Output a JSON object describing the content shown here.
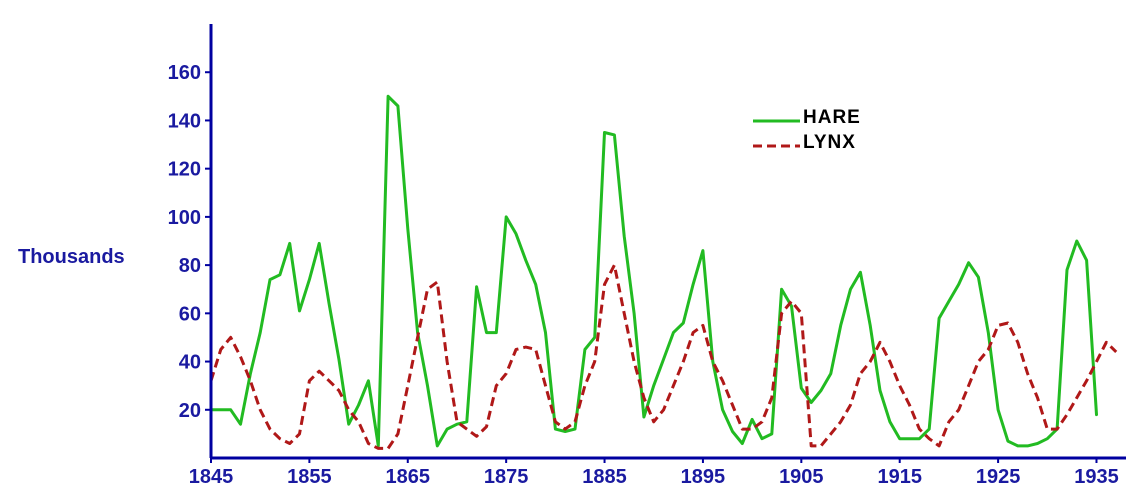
{
  "chart_data": {
    "type": "line",
    "title": "",
    "xlabel": "",
    "ylabel": "Thousands",
    "xlim": [
      1845,
      1938
    ],
    "ylim": [
      0,
      180
    ],
    "x_ticks": [
      1845,
      1855,
      1865,
      1875,
      1885,
      1895,
      1905,
      1915,
      1925,
      1935
    ],
    "y_ticks": [
      20,
      40,
      60,
      80,
      100,
      120,
      140,
      160
    ],
    "grid": false,
    "legend_position": "top-right",
    "colors": {
      "axis": "#0000a0",
      "text": "#1a1aa0",
      "hare": "#22bb22",
      "lynx": "#b01818"
    },
    "series": [
      {
        "name": "HARE",
        "style": "solid",
        "x": [
          1845,
          1847,
          1848,
          1849,
          1850,
          1851,
          1852,
          1853,
          1854,
          1855,
          1856,
          1857,
          1858,
          1859,
          1860,
          1861,
          1862,
          1863,
          1864,
          1865,
          1866,
          1867,
          1868,
          1869,
          1870,
          1871,
          1872,
          1873,
          1874,
          1875,
          1876,
          1877,
          1878,
          1879,
          1880,
          1881,
          1882,
          1883,
          1884,
          1885,
          1886,
          1887,
          1888,
          1889,
          1890,
          1891,
          1892,
          1893,
          1894,
          1895,
          1896,
          1897,
          1898,
          1899,
          1900,
          1901,
          1902,
          1903,
          1904,
          1905,
          1906,
          1907,
          1908,
          1909,
          1910,
          1911,
          1912,
          1913,
          1914,
          1915,
          1916,
          1917,
          1918,
          1919,
          1920,
          1921,
          1922,
          1923,
          1924,
          1925,
          1926,
          1927,
          1928,
          1929,
          1930,
          1931,
          1932,
          1933,
          1934,
          1935
        ],
        "values": [
          20,
          20,
          14,
          35,
          52,
          74,
          76,
          89,
          61,
          74,
          89,
          64,
          41,
          14,
          22,
          32,
          5,
          150,
          146,
          95,
          52,
          30,
          5,
          12,
          14,
          15,
          71,
          52,
          52,
          100,
          93,
          82,
          72,
          52,
          12,
          11,
          12,
          45,
          50,
          135,
          134,
          92,
          60,
          17,
          30,
          41,
          52,
          56,
          72,
          86,
          40,
          20,
          11,
          6,
          16,
          8,
          10,
          70,
          63,
          29,
          23,
          28,
          35,
          55,
          70,
          77,
          55,
          28,
          15,
          8,
          8,
          8,
          12,
          58,
          65,
          72,
          81,
          75,
          52,
          20,
          7,
          5,
          5,
          6,
          8,
          12,
          78,
          90,
          82,
          18
        ]
      },
      {
        "name": "LYNX",
        "style": "dashed",
        "x": [
          1845,
          1846,
          1847,
          1848,
          1849,
          1850,
          1851,
          1852,
          1853,
          1854,
          1855,
          1856,
          1857,
          1858,
          1859,
          1860,
          1861,
          1862,
          1863,
          1864,
          1865,
          1866,
          1867,
          1868,
          1869,
          1870,
          1871,
          1872,
          1873,
          1874,
          1875,
          1876,
          1877,
          1878,
          1879,
          1880,
          1881,
          1882,
          1883,
          1884,
          1885,
          1886,
          1887,
          1888,
          1889,
          1890,
          1891,
          1892,
          1893,
          1894,
          1895,
          1896,
          1897,
          1898,
          1899,
          1900,
          1901,
          1902,
          1903,
          1904,
          1905,
          1906,
          1907,
          1908,
          1909,
          1910,
          1911,
          1912,
          1913,
          1914,
          1915,
          1916,
          1917,
          1918,
          1919,
          1920,
          1921,
          1922,
          1923,
          1924,
          1925,
          1926,
          1927,
          1928,
          1929,
          1930,
          1931,
          1932,
          1933,
          1934,
          1935,
          1936,
          1937
        ],
        "values": [
          32,
          45,
          50,
          42,
          32,
          20,
          12,
          8,
          6,
          10,
          32,
          36,
          32,
          28,
          20,
          15,
          6,
          4,
          4,
          10,
          30,
          50,
          70,
          73,
          40,
          15,
          12,
          9,
          13,
          30,
          35,
          45,
          46,
          45,
          30,
          15,
          12,
          15,
          30,
          40,
          72,
          80,
          60,
          40,
          25,
          15,
          20,
          30,
          40,
          52,
          55,
          40,
          32,
          22,
          12,
          12,
          15,
          25,
          60,
          65,
          60,
          5,
          5,
          10,
          15,
          22,
          35,
          40,
          48,
          40,
          30,
          22,
          12,
          8,
          5,
          15,
          20,
          30,
          40,
          45,
          55,
          56,
          48,
          35,
          25,
          12,
          12,
          18,
          25,
          32,
          40,
          48,
          44
        ]
      }
    ]
  }
}
